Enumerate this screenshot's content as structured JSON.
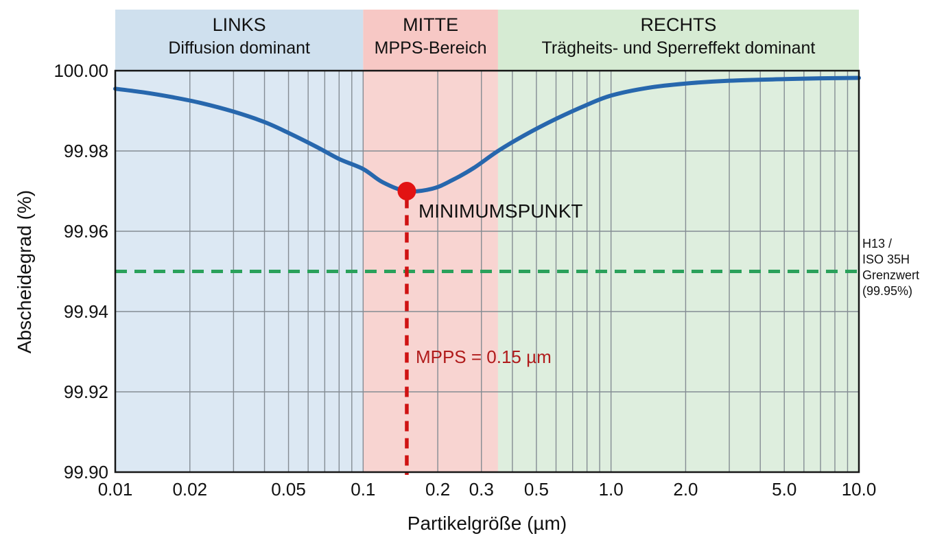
{
  "chart_data": {
    "type": "line",
    "xlabel": "Partikelgröße (µm)",
    "ylabel": "Abscheidegrad (%)",
    "xscale": "log",
    "xlim": [
      0.01,
      10.0
    ],
    "ylim": [
      99.9,
      100.0
    ],
    "grid": true,
    "x_ticks": [
      {
        "value": 0.01,
        "label": "0.01"
      },
      {
        "value": 0.02,
        "label": "0.02"
      },
      {
        "value": 0.05,
        "label": "0.05"
      },
      {
        "value": 0.1,
        "label": "0.1"
      },
      {
        "value": 0.2,
        "label": "0.2"
      },
      {
        "value": 0.3,
        "label": "0.3"
      },
      {
        "value": 0.5,
        "label": "0.5"
      },
      {
        "value": 1.0,
        "label": "1.0"
      },
      {
        "value": 2.0,
        "label": "2.0"
      },
      {
        "value": 5.0,
        "label": "5.0"
      },
      {
        "value": 10.0,
        "label": "10.0"
      }
    ],
    "y_ticks": [
      {
        "value": 100.0,
        "label": "100.00"
      },
      {
        "value": 99.98,
        "label": "99.98"
      },
      {
        "value": 99.96,
        "label": "99.96"
      },
      {
        "value": 99.94,
        "label": "99.94"
      },
      {
        "value": 99.92,
        "label": "99.92"
      },
      {
        "value": 99.9,
        "label": "99.90"
      }
    ],
    "regions": [
      {
        "title": "LINKS",
        "subtitle": "Diffusion dominant",
        "from": 0.01,
        "to": 0.1,
        "band_color": "#cfe0ee",
        "fill_color": "#dce8f3"
      },
      {
        "title": "MITTE",
        "subtitle": "MPPS-Bereich",
        "from": 0.1,
        "to": 0.35,
        "band_color": "#f7c8c5",
        "fill_color": "#f8d4d1"
      },
      {
        "title": "RECHTS",
        "subtitle": "Trägheits- und Sperreffekt dominant",
        "from": 0.35,
        "to": 10.0,
        "band_color": "#d6ebd3",
        "fill_color": "#deeede"
      }
    ],
    "series": [
      {
        "name": "Abscheidegrad",
        "color": "#2767ad",
        "points": [
          [
            0.01,
            99.9955
          ],
          [
            0.013,
            99.9946
          ],
          [
            0.017,
            99.9934
          ],
          [
            0.022,
            99.992
          ],
          [
            0.03,
            99.9898
          ],
          [
            0.04,
            99.9872
          ],
          [
            0.05,
            99.9845
          ],
          [
            0.065,
            99.981
          ],
          [
            0.08,
            99.978
          ],
          [
            0.1,
            99.9755
          ],
          [
            0.12,
            99.9722
          ],
          [
            0.15,
            99.97
          ],
          [
            0.19,
            99.9706
          ],
          [
            0.23,
            99.9728
          ],
          [
            0.28,
            99.9758
          ],
          [
            0.35,
            99.98
          ],
          [
            0.45,
            99.984
          ],
          [
            0.6,
            99.988
          ],
          [
            0.8,
            99.9915
          ],
          [
            1.0,
            99.9938
          ],
          [
            1.4,
            99.9957
          ],
          [
            2.0,
            99.9968
          ],
          [
            3.0,
            99.9975
          ],
          [
            5.0,
            99.9979
          ],
          [
            7.0,
            99.9981
          ],
          [
            10.0,
            99.9982
          ]
        ]
      }
    ],
    "annotations": {
      "minimum_point": {
        "x": 0.15,
        "y": 99.97,
        "label": "MINIMUMSPUNKT",
        "color": "#e21313"
      },
      "mpps_line": {
        "x": 0.15,
        "label": "MPPS = 0.15 µm",
        "color": "#cf1313",
        "label_color": "#b01b1b"
      },
      "limit_line": {
        "y": 99.95,
        "color": "#2aa15b",
        "label_lines": [
          "H13 /",
          "ISO 35H",
          "Grenzwert",
          "(99.95%)"
        ]
      }
    },
    "colors": {
      "grid": "#848c93",
      "plot_border": "#161616",
      "text": "#111111"
    }
  }
}
